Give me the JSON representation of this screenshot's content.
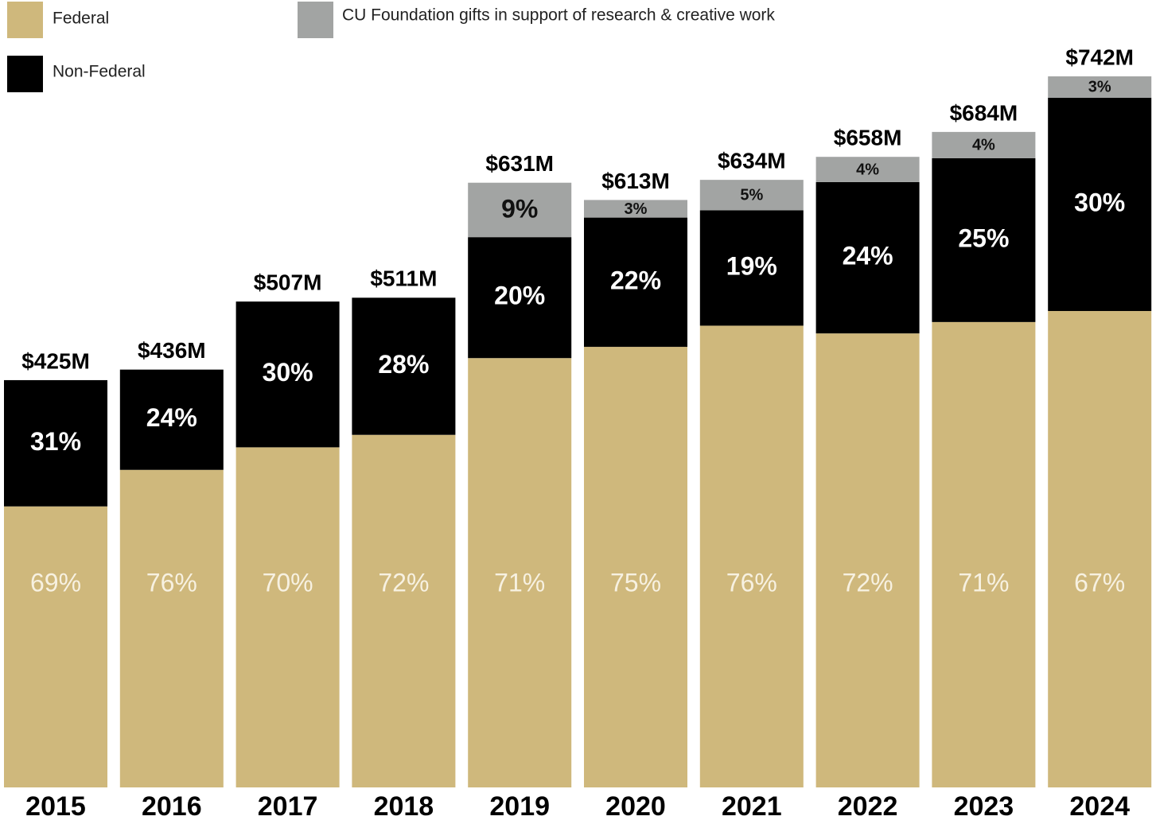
{
  "chart_data": {
    "type": "stacked-bar",
    "categories": [
      "2015",
      "2016",
      "2017",
      "2018",
      "2019",
      "2020",
      "2021",
      "2022",
      "2023",
      "2024"
    ],
    "series": [
      {
        "name": "Federal",
        "color": "#cfb87c",
        "values": [
          69,
          76,
          70,
          72,
          71,
          75,
          76,
          72,
          71,
          67
        ],
        "value_labels": [
          "69%",
          "76%",
          "70%",
          "72%",
          "71%",
          "75%",
          "76%",
          "72%",
          "71%",
          "67%"
        ]
      },
      {
        "name": "Non-Federal",
        "color": "#000000",
        "values": [
          31,
          24,
          30,
          28,
          20,
          22,
          19,
          24,
          25,
          30
        ],
        "value_labels": [
          "31%",
          "24%",
          "30%",
          "28%",
          "20%",
          "22%",
          "19%",
          "24%",
          "25%",
          "30%"
        ]
      },
      {
        "name": "CU Foundation gifts in support of research & creative work",
        "color": "#a2a4a3",
        "values": [
          null,
          null,
          null,
          null,
          9,
          3,
          5,
          4,
          4,
          3
        ],
        "value_labels": [
          null,
          null,
          null,
          null,
          "9%",
          "3%",
          "5%",
          "4%",
          "4%",
          "3%"
        ]
      }
    ],
    "totals": {
      "values": [
        425,
        436,
        507,
        511,
        631,
        613,
        634,
        658,
        684,
        742
      ],
      "value_labels": [
        "$425M",
        "$436M",
        "$507M",
        "$511M",
        "$631M",
        "$613M",
        "$634M",
        "$658M",
        "$684M",
        "$742M"
      ]
    }
  }
}
